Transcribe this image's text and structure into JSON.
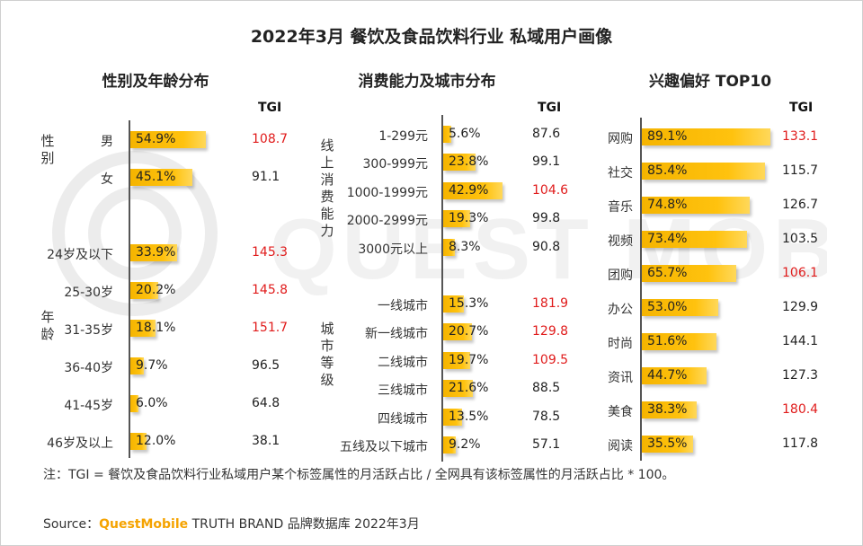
{
  "title": "2022年3月 餐饮及食品饮料行业 私域用户画像",
  "tgi_header": "TGI",
  "colors": {
    "bar": "#ffc20e",
    "tgi_high": "#e01b1b",
    "tgi_normal": "#222222"
  },
  "chart_data": [
    {
      "type": "bar",
      "title": "性别及年龄分布",
      "groups": [
        {
          "label": "性别",
          "categories": [
            "男",
            "女"
          ]
        },
        {
          "label": "年龄",
          "categories": [
            "24岁及以下",
            "25-30岁",
            "31-35岁",
            "36-40岁",
            "41-45岁",
            "46岁及以上"
          ]
        }
      ],
      "categories": [
        "男",
        "女",
        "24岁及以下",
        "25-30岁",
        "31-35岁",
        "36-40岁",
        "41-45岁",
        "46岁及以上"
      ],
      "values": [
        54.9,
        45.1,
        33.9,
        20.2,
        18.1,
        9.7,
        6.0,
        12.0
      ],
      "value_labels": [
        "54.9%",
        "45.1%",
        "33.9%",
        "20.2%",
        "18.1%",
        "9.7%",
        "6.0%",
        "12.0%"
      ],
      "tgi": [
        "108.7",
        "91.1",
        "145.3",
        "145.8",
        "151.7",
        "96.5",
        "64.8",
        "38.1"
      ],
      "tgi_highlight": [
        true,
        false,
        true,
        true,
        true,
        false,
        false,
        false
      ],
      "xlim": [
        0,
        100
      ]
    },
    {
      "type": "bar",
      "title": "消费能力及城市分布",
      "groups": [
        {
          "label": "线上消费能力",
          "categories": [
            "1-299元",
            "300-999元",
            "1000-1999元",
            "2000-2999元",
            "3000元以上"
          ]
        },
        {
          "label": "城市等级",
          "categories": [
            "一线城市",
            "新一线城市",
            "二线城市",
            "三线城市",
            "四线城市",
            "五线及以下城市"
          ]
        }
      ],
      "categories": [
        "1-299元",
        "300-999元",
        "1000-1999元",
        "2000-2999元",
        "3000元以上",
        "一线城市",
        "新一线城市",
        "二线城市",
        "三线城市",
        "四线城市",
        "五线及以下城市"
      ],
      "values": [
        5.6,
        23.8,
        42.9,
        19.3,
        8.3,
        15.3,
        20.7,
        19.7,
        21.6,
        13.5,
        9.2
      ],
      "value_labels": [
        "5.6%",
        "23.8%",
        "42.9%",
        "19.3%",
        "8.3%",
        "15.3%",
        "20.7%",
        "19.7%",
        "21.6%",
        "13.5%",
        "9.2%"
      ],
      "tgi": [
        "87.6",
        "99.1",
        "104.6",
        "99.8",
        "90.8",
        "181.9",
        "129.8",
        "109.5",
        "88.5",
        "78.5",
        "57.1"
      ],
      "tgi_highlight": [
        false,
        false,
        true,
        false,
        false,
        true,
        true,
        true,
        false,
        false,
        false
      ],
      "xlim": [
        0,
        100
      ]
    },
    {
      "type": "bar",
      "title": "兴趣偏好 TOP10",
      "categories": [
        "网购",
        "社交",
        "音乐",
        "视频",
        "团购",
        "办公",
        "时尚",
        "资讯",
        "美食",
        "阅读"
      ],
      "values": [
        89.1,
        85.4,
        74.8,
        73.4,
        65.7,
        53.0,
        51.6,
        44.7,
        38.3,
        35.5
      ],
      "value_labels": [
        "89.1%",
        "85.4%",
        "74.8%",
        "73.4%",
        "65.7%",
        "53.0%",
        "51.6%",
        "44.7%",
        "38.3%",
        "35.5%"
      ],
      "tgi": [
        "133.1",
        "115.7",
        "126.7",
        "103.5",
        "106.1",
        "129.9",
        "144.1",
        "127.3",
        "180.4",
        "117.8"
      ],
      "tgi_highlight": [
        true,
        false,
        false,
        false,
        true,
        false,
        false,
        false,
        true,
        false
      ],
      "xlim": [
        0,
        100
      ]
    }
  ],
  "note": "注：TGI = 餐饮及食品饮料行业私域用户某个标签属性的月活跃占比 / 全网具有该标签属性的月活跃占比 * 100。",
  "source": {
    "prefix": "Source：",
    "brand": "QuestMobile",
    "suffix": " TRUTH BRAND 品牌数据库 2022年3月"
  },
  "watermark": "QUEST MOBILE"
}
